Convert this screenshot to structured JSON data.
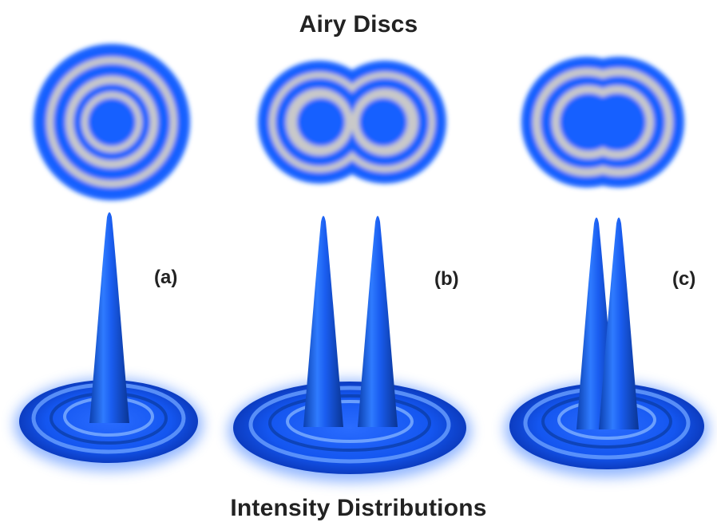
{
  "diagram": {
    "top_title": "Airy Discs",
    "bottom_title": "Intensity Distributions",
    "panels": [
      {
        "label": "(a)",
        "peak_count": 1
      },
      {
        "label": "(b)",
        "peak_count": 2
      },
      {
        "label": "(c)",
        "peak_count": 2
      }
    ],
    "colors": {
      "blue": "#1560ff",
      "ring_gap": "#c9c9c9",
      "text": "#222222",
      "background": "#ffffff"
    }
  }
}
